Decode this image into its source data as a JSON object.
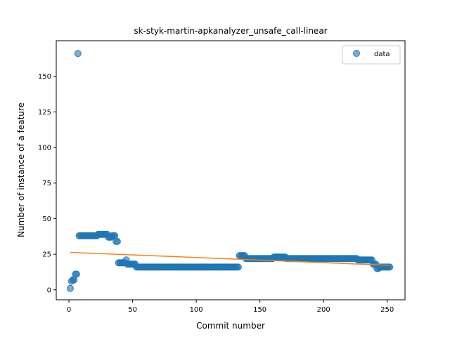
{
  "chart_data": {
    "type": "scatter",
    "title": "sk-styk-martin-apkanalyzer_unsafe_call-linear",
    "xlabel": "Commit number",
    "ylabel": "Number of instance of a feature",
    "xlim": [
      -10,
      264
    ],
    "ylim": [
      -7,
      175
    ],
    "xticks": [
      0,
      50,
      100,
      150,
      200,
      250
    ],
    "yticks": [
      0,
      25,
      50,
      75,
      100,
      125,
      150
    ],
    "legend": {
      "position": "top-right",
      "entries": [
        "data"
      ]
    },
    "colors": {
      "points": "#1f77b4",
      "trend": "#ff7f0e"
    },
    "series": [
      {
        "name": "data",
        "kind": "points",
        "segments": [
          {
            "x": [
              1
            ],
            "y": [
              1
            ]
          },
          {
            "x": [
              2,
              3,
              4
            ],
            "y": [
              6,
              7,
              7
            ]
          },
          {
            "x": [
              5,
              6
            ],
            "y": [
              11,
              11
            ]
          },
          {
            "x": [
              7
            ],
            "y": [
              166
            ]
          },
          {
            "x_from": 8,
            "x_to": 22,
            "y": 38
          },
          {
            "x_from": 23,
            "x_to": 30,
            "y": 39
          },
          {
            "x_from": 31,
            "x_to": 33,
            "y": 37
          },
          {
            "x_from": 34,
            "x_to": 36,
            "y": 38
          },
          {
            "x_from": 37,
            "x_to": 38,
            "y": 34
          },
          {
            "x_from": 39,
            "x_to": 44,
            "y": 19
          },
          {
            "x": [
              45
            ],
            "y": [
              21
            ]
          },
          {
            "x_from": 46,
            "x_to": 52,
            "y": 18
          },
          {
            "x_from": 53,
            "x_to": 133,
            "y": 16
          },
          {
            "x_from": 134,
            "x_to": 138,
            "y": 24
          },
          {
            "x_from": 139,
            "x_to": 160,
            "y": 22
          },
          {
            "x_from": 161,
            "x_to": 170,
            "y": 23
          },
          {
            "x_from": 171,
            "x_to": 226,
            "y": 22
          },
          {
            "x_from": 227,
            "x_to": 238,
            "y": 21
          },
          {
            "x_from": 239,
            "x_to": 241,
            "y": 18
          },
          {
            "x_from": 242,
            "x_to": 243,
            "y": 15
          },
          {
            "x_from": 244,
            "x_to": 252,
            "y": 16
          }
        ]
      },
      {
        "name": "",
        "kind": "line",
        "x": [
          1,
          252
        ],
        "y": [
          26.3,
          17.2
        ]
      }
    ]
  }
}
